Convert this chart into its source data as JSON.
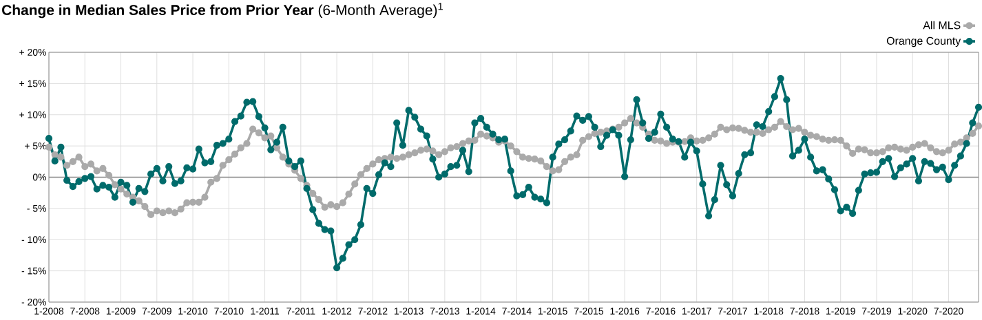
{
  "chart_data": {
    "type": "line",
    "title": "**Change in Median Sales Price from Prior Year** (6-Month Average)$^{1}$",
    "categories": [
      "1-2008",
      null,
      null,
      null,
      null,
      null,
      "7-2008",
      null,
      null,
      null,
      null,
      null,
      "1-2009",
      null,
      null,
      null,
      null,
      null,
      "7-2009",
      null,
      null,
      null,
      null,
      null,
      "1-2010",
      null,
      null,
      null,
      null,
      null,
      "7-2010",
      null,
      null,
      null,
      null,
      null,
      "1-2011",
      null,
      null,
      null,
      null,
      null,
      "7-2011",
      null,
      null,
      null,
      null,
      null,
      "1-2012",
      null,
      null,
      null,
      null,
      null,
      "7-2012",
      null,
      null,
      null,
      null,
      null,
      "1-2013",
      null,
      null,
      null,
      null,
      null,
      "7-2013",
      null,
      null,
      null,
      null,
      null,
      "1-2014",
      null,
      null,
      null,
      null,
      null,
      "7-2014",
      null,
      null,
      null,
      null,
      null,
      "1-2015",
      null,
      null,
      null,
      null,
      null,
      "7-2015",
      null,
      null,
      null,
      null,
      null,
      "1-2016",
      null,
      null,
      null,
      null,
      null,
      "7-2016",
      null,
      null,
      null,
      null,
      null,
      "1-2017",
      null,
      null,
      null,
      null,
      null,
      "7-2017",
      null,
      null,
      null,
      null,
      null,
      "1-2018",
      null,
      null,
      null,
      null,
      null,
      "7-2018",
      null,
      null,
      null,
      null,
      null,
      "1-2019",
      null,
      null,
      null,
      null,
      null,
      "7-2019",
      null,
      null,
      null,
      null,
      null,
      "1-2020",
      null,
      null,
      null,
      null,
      null,
      "7-2020",
      null,
      null,
      null,
      null,
      null
    ],
    "series": [
      {
        "name": "All MLS",
        "color": "#aaaaaa",
        "values": [
          4.8,
          3.6,
          3.2,
          1.9,
          2.5,
          3.2,
          1.7,
          2.1,
          1.0,
          1.4,
          0.3,
          -1.2,
          -1.9,
          -2.7,
          -3.2,
          -3.8,
          -4.7,
          -6.0,
          -5.4,
          -5.7,
          -5.4,
          -5.7,
          -5.1,
          -4.1,
          -4.0,
          -4.0,
          -3.2,
          -0.8,
          -0.2,
          1.9,
          2.8,
          3.7,
          4.7,
          5.4,
          7.7,
          7.1,
          6.3,
          6.6,
          4.7,
          3.2,
          2.1,
          1.1,
          -0.2,
          -1.3,
          -2.6,
          -3.6,
          -4.8,
          -4.4,
          -4.7,
          -4.1,
          -2.7,
          -1.1,
          0.4,
          1.4,
          2.1,
          2.8,
          3.0,
          3.2,
          3.0,
          3.2,
          3.6,
          3.9,
          4.3,
          4.5,
          4.2,
          3.6,
          4.1,
          4.7,
          4.9,
          5.4,
          5.8,
          5.9,
          6.9,
          6.6,
          6.3,
          5.6,
          5.8,
          5.0,
          4.1,
          3.2,
          3.0,
          2.9,
          2.6,
          1.7,
          1.0,
          1.2,
          2.5,
          3.2,
          3.6,
          5.9,
          6.5,
          7.0,
          7.2,
          7.4,
          7.7,
          8.0,
          8.7,
          9.4,
          8.7,
          8.0,
          6.9,
          5.9,
          5.8,
          5.4,
          5.6,
          5.6,
          5.7,
          6.3,
          5.8,
          5.9,
          6.3,
          6.9,
          8.0,
          7.6,
          7.9,
          7.8,
          7.5,
          7.2,
          7.2,
          7.0,
          7.6,
          8.0,
          8.9,
          8.1,
          7.6,
          7.8,
          7.2,
          6.7,
          6.5,
          6.1,
          5.9,
          6.0,
          5.9,
          5.0,
          3.8,
          4.5,
          4.4,
          3.9,
          3.9,
          4.1,
          4.7,
          4.8,
          4.5,
          4.3,
          4.8,
          5.2,
          5.4,
          4.7,
          4.1,
          3.9,
          4.3,
          5.3,
          5.6,
          6.3,
          7.0,
          8.2
        ]
      },
      {
        "name": "Orange County",
        "color": "#006b6b",
        "values": [
          6.2,
          2.6,
          4.8,
          -0.5,
          -1.5,
          -0.7,
          -0.2,
          0.1,
          -1.9,
          -1.3,
          -1.6,
          -3.2,
          -0.8,
          -1.3,
          -4.0,
          -1.8,
          -2.3,
          0.5,
          1.4,
          -0.6,
          1.7,
          -1.0,
          -0.6,
          1.5,
          1.3,
          4.5,
          2.3,
          2.5,
          5.1,
          5.4,
          6.1,
          8.9,
          9.8,
          12.0,
          12.1,
          9.7,
          7.9,
          4.4,
          5.6,
          8.0,
          2.6,
          1.7,
          2.6,
          -1.8,
          -5.2,
          -7.4,
          -8.4,
          -8.6,
          -14.5,
          -13.0,
          -10.8,
          -10.0,
          -7.6,
          -1.8,
          -2.6,
          0.4,
          2.3,
          1.7,
          8.7,
          5.1,
          10.7,
          9.6,
          7.7,
          6.6,
          2.9,
          0.0,
          0.5,
          1.7,
          1.9,
          4.3,
          0.9,
          8.7,
          9.4,
          8.0,
          6.9,
          6.0,
          6.1,
          1.0,
          -3.0,
          -2.8,
          -1.6,
          -3.2,
          -3.5,
          -4.1,
          3.2,
          5.3,
          6.0,
          7.4,
          9.8,
          9.1,
          9.7,
          8.0,
          4.9,
          6.7,
          7.6,
          6.7,
          0.1,
          6.0,
          12.4,
          8.7,
          6.2,
          7.2,
          10.1,
          8.0,
          6.1,
          5.7,
          3.2,
          5.6,
          4.2,
          -1.1,
          -6.2,
          -3.6,
          1.9,
          -1.2,
          -3.0,
          0.6,
          3.6,
          3.9,
          8.4,
          8.1,
          10.5,
          12.9,
          15.8,
          12.4,
          3.4,
          4.3,
          6.1,
          3.2,
          1.0,
          1.2,
          -0.3,
          -2.0,
          -5.4,
          -4.8,
          -5.8,
          -2.1,
          0.5,
          0.7,
          0.8,
          2.5,
          3.0,
          0.1,
          1.5,
          2.1,
          3.0,
          -0.6,
          2.5,
          2.2,
          1.2,
          1.6,
          -0.4,
          1.9,
          3.4,
          5.4,
          8.7,
          11.2
        ]
      }
    ],
    "ylim": [
      -20,
      20
    ],
    "yticks": [
      {
        "value": -20,
        "label": "- 20%"
      },
      {
        "value": -15,
        "label": "- 15%"
      },
      {
        "value": -10,
        "label": "- 10%"
      },
      {
        "value": -5,
        "label": "- 5%"
      },
      {
        "value": 0,
        "label": "0%"
      },
      {
        "value": 5,
        "label": "+ 5%"
      },
      {
        "value": 10,
        "label": "+ 10%"
      },
      {
        "value": 15,
        "label": "+ 15%"
      },
      {
        "value": 20,
        "label": "+ 20%"
      }
    ],
    "ref_lines": [
      {
        "axis": "y",
        "value": 0,
        "color": "#888888"
      }
    ],
    "grid": true,
    "legend": "top right",
    "marker": "circle",
    "line_style": "solid"
  }
}
